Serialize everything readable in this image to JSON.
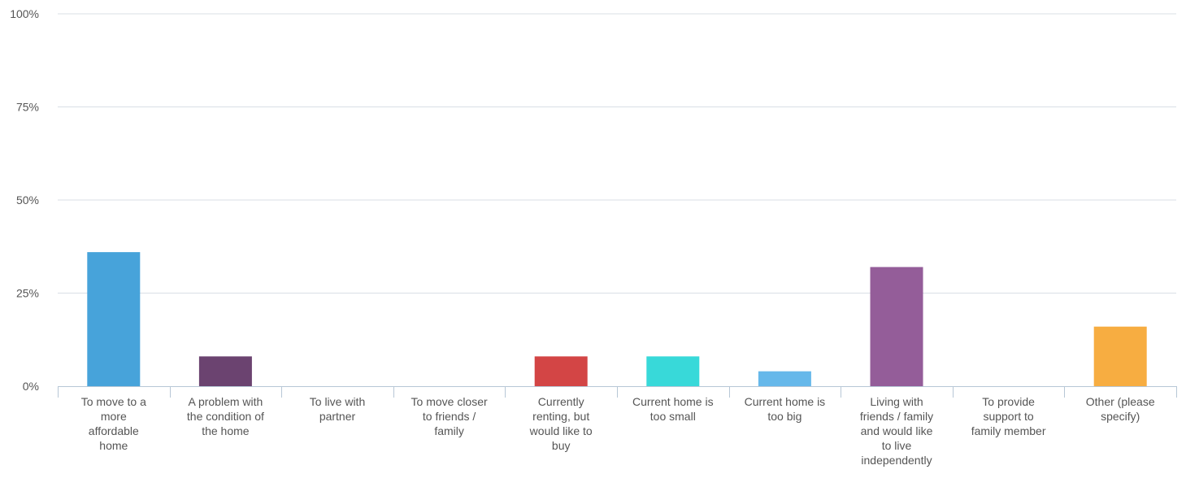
{
  "chart_data": {
    "type": "bar",
    "categories": [
      [
        "To move to a",
        "more",
        "affordable",
        "home"
      ],
      [
        "A problem with",
        "the condition of",
        "the home"
      ],
      [
        "To live with",
        "partner"
      ],
      [
        "To move closer",
        "to friends /",
        "family"
      ],
      [
        "Currently",
        "renting, but",
        "would like to",
        "buy"
      ],
      [
        "Current home is",
        "too small"
      ],
      [
        "Current home is",
        "too big"
      ],
      [
        "Living with",
        "friends / family",
        "and would like",
        "to live",
        "independently"
      ],
      [
        "To provide",
        "support to",
        "family member"
      ],
      [
        "Other (please",
        "specify)"
      ]
    ],
    "values": [
      36,
      8,
      0,
      0,
      8,
      8,
      4,
      32,
      0,
      16
    ],
    "colors": [
      "#47a3da",
      "#6b4370",
      "#cccccc",
      "#cccccc",
      "#d34545",
      "#38d9d9",
      "#66b8ea",
      "#945d99",
      "#cccccc",
      "#f7ad41"
    ],
    "ylim": [
      0,
      100
    ],
    "yticks": [
      0,
      25,
      50,
      75,
      100
    ],
    "ytick_labels": [
      "0%",
      "25%",
      "50%",
      "75%",
      "100%"
    ],
    "title": "",
    "xlabel": "",
    "ylabel": "",
    "grid": true,
    "gridline_color": "#d9dfe5",
    "axis_color": "#b7c7d6",
    "text_color": "#555555"
  }
}
